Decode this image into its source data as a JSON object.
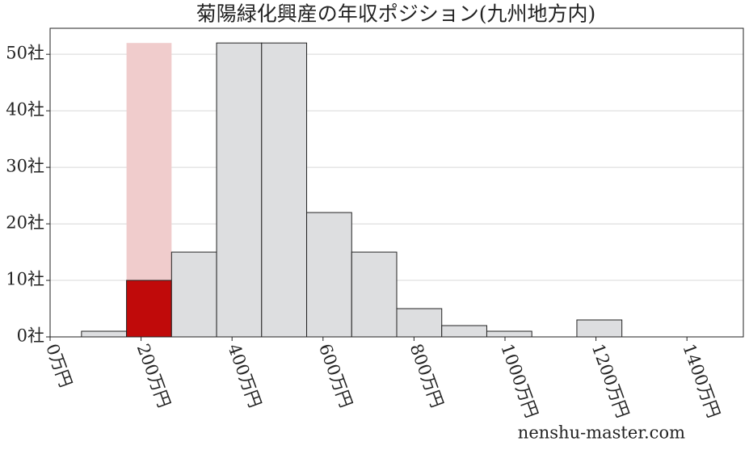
{
  "chart_data": {
    "type": "histogram",
    "title": "菊陽緑化興産の年収ポジション(九州地方内)",
    "bins": [
      69,
      168,
      267,
      366,
      465,
      564,
      663,
      762,
      861,
      960,
      1059,
      1158,
      1257
    ],
    "counts": [
      1,
      10,
      15,
      52,
      52,
      22,
      15,
      5,
      2,
      1,
      0,
      3
    ],
    "color": "#dddee0",
    "edge_color": "#222222",
    "highlight": {
      "bin": 1,
      "color": "#c00a0a",
      "band_color": "#f0cccc"
    },
    "xlim": [
      0,
      1524
    ],
    "ylim": [
      0,
      54.6
    ],
    "xticks": [
      {
        "value": 0,
        "label": "0万円"
      },
      {
        "value": 200,
        "label": "200万円"
      },
      {
        "value": 400,
        "label": "400万円"
      },
      {
        "value": 600,
        "label": "600万円"
      },
      {
        "value": 800,
        "label": "800万円"
      },
      {
        "value": 1000,
        "label": "1000万円"
      },
      {
        "value": 1200,
        "label": "1200万円"
      },
      {
        "value": 1400,
        "label": "1400万円"
      }
    ],
    "yticks": [
      {
        "value": 0,
        "label": "0社"
      },
      {
        "value": 10,
        "label": "10社"
      },
      {
        "value": 20,
        "label": "20社"
      },
      {
        "value": 30,
        "label": "30社"
      },
      {
        "value": 40,
        "label": "40社"
      },
      {
        "value": 50,
        "label": "50社"
      }
    ],
    "grid": true,
    "watermark": "nenshu-master.com"
  }
}
